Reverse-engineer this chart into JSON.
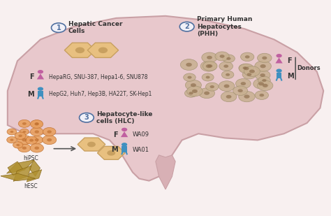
{
  "bg_color": "#f5e6e8",
  "liver_color": "#e8c8cc",
  "liver_outline": "#c9a0a5",
  "section1_title": "Hepatic Cancer\nCells",
  "section2_title": "Primary Human\nHepatocytes\n(PHH)",
  "section3_title": "Hepatocyte-like\ncells (HLC)",
  "female_color": "#c060a0",
  "male_color": "#4090c0",
  "cell_color": "#e8c080",
  "cell_outline": "#c8a060",
  "phh_color": "#c8b090",
  "circle_bg": "#f0f0f8",
  "circle_outline": "#5070a0",
  "female_label1": "F",
  "male_label1": "M",
  "female_list1": "HepaRG, SNU-387, Hepa1-6, SNU878",
  "male_list1": "HepG2, Huh7, Hep3B, HA22T, SK-Hep1",
  "female_label2": "F",
  "male_label2": "M",
  "female_line2": "WA09",
  "male_line2": "WA01",
  "donors_label": "Donors",
  "hipsc_label": "hiPSC",
  "hesc_label": "hESC"
}
